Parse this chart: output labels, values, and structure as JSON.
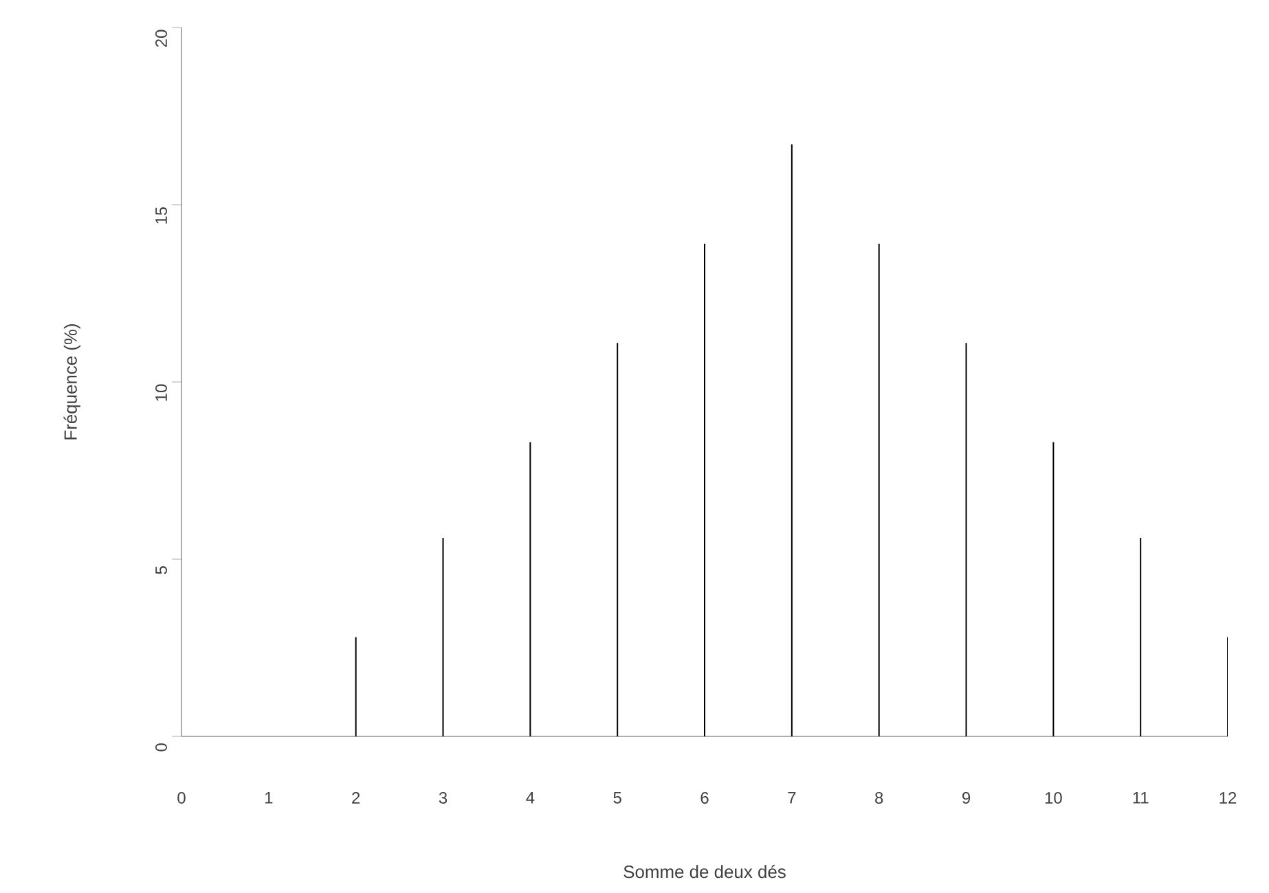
{
  "chart_data": {
    "type": "bar",
    "xlabel": "Somme de deux dés",
    "ylabel": "Fréquence (%)",
    "x": [
      0,
      1,
      2,
      3,
      4,
      5,
      6,
      7,
      8,
      9,
      10,
      11,
      12
    ],
    "values": [
      0,
      0,
      2.8,
      5.6,
      8.3,
      11.1,
      13.9,
      16.7,
      13.9,
      11.1,
      8.3,
      5.6,
      2.8
    ],
    "color": "#000000",
    "xlim": [
      0,
      12
    ],
    "xticks": [
      0,
      1,
      2,
      3,
      4,
      5,
      6,
      7,
      8,
      9,
      10,
      11,
      12
    ],
    "ylim": [
      0,
      20
    ],
    "yticks": [
      0,
      5,
      10,
      15,
      20
    ]
  }
}
